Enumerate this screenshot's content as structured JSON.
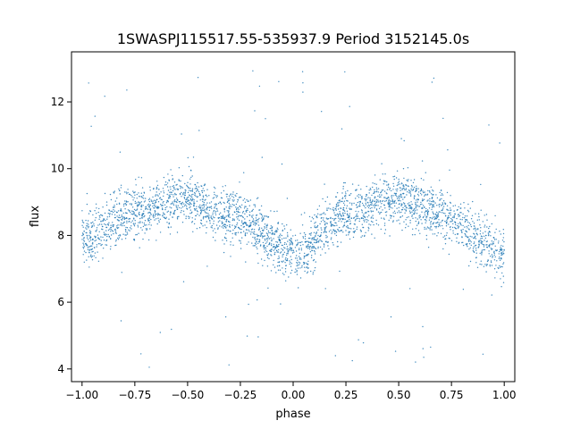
{
  "chart_data": {
    "type": "scatter",
    "title": "1SWASPJ115517.55-535937.9 Period 3152145.0s",
    "xlabel": "phase",
    "ylabel": "flux",
    "xlim": [
      -1.05,
      1.05
    ],
    "ylim": [
      3.62,
      13.5
    ],
    "x_ticks": [
      -1.0,
      -0.75,
      -0.5,
      -0.25,
      0.0,
      0.25,
      0.5,
      0.75,
      1.0
    ],
    "x_tick_labels": [
      "−1.00",
      "−0.75",
      "−0.50",
      "−0.25",
      "0.00",
      "0.25",
      "0.50",
      "0.75",
      "1.00"
    ],
    "y_ticks": [
      4,
      6,
      8,
      10,
      12
    ],
    "y_tick_labels": [
      "4",
      "6",
      "8",
      "10",
      "12"
    ],
    "grid": false,
    "marker_color": "#1f77b4",
    "series": [
      {
        "name": "",
        "trend_x": [
          -1.0,
          -0.95,
          -0.9,
          -0.85,
          -0.8,
          -0.75,
          -0.7,
          -0.65,
          -0.6,
          -0.55,
          -0.5,
          -0.45,
          -0.4,
          -0.35,
          -0.3,
          -0.25,
          -0.2,
          -0.15,
          -0.1,
          -0.05,
          0.0,
          0.05,
          0.1,
          0.15,
          0.2,
          0.25,
          0.3,
          0.35,
          0.4,
          0.45,
          0.5,
          0.55,
          0.6,
          0.65,
          0.7,
          0.75,
          0.8,
          0.85,
          0.9,
          0.95,
          1.0
        ],
        "trend_y": [
          8.0,
          7.9,
          8.2,
          8.5,
          8.6,
          8.7,
          8.7,
          8.8,
          9.0,
          9.1,
          9.1,
          9.0,
          8.9,
          8.7,
          8.6,
          8.5,
          8.3,
          8.1,
          7.9,
          7.6,
          7.5,
          7.4,
          7.8,
          8.2,
          8.5,
          8.6,
          8.7,
          8.8,
          9.0,
          9.1,
          9.1,
          9.0,
          8.9,
          8.7,
          8.6,
          8.5,
          8.3,
          8.0,
          7.8,
          7.6,
          7.5
        ],
        "spread": 0.7,
        "outlier_range": [
          4.0,
          13.0
        ]
      }
    ]
  }
}
